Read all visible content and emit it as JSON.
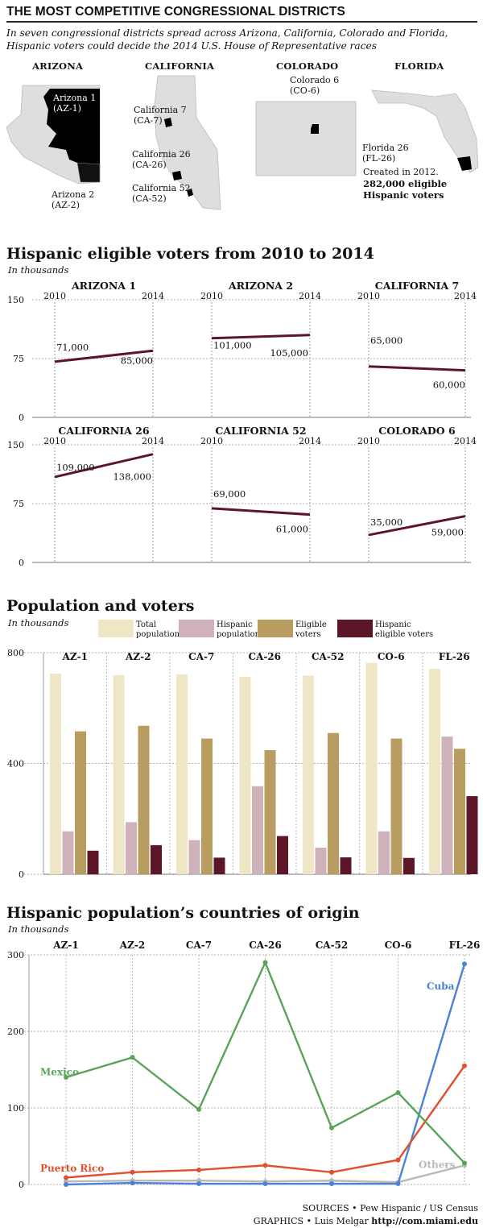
{
  "header": {
    "title": "THE MOST COMPETITIVE CONGRESSIONAL DISTRICTS",
    "subtitle": "In seven congressional districts spread across Arizona, California, Colorado and Florida, Hispanic voters could decide the 2014 U.S. House of Representative races"
  },
  "maps": {
    "arizona": {
      "name": "ARIZONA",
      "d1_line1": "Arizona 1",
      "d1_line2": "(AZ-1)",
      "d2_line1": "Arizona 2",
      "d2_line2": "(AZ-2)"
    },
    "california": {
      "name": "CALIFORNIA",
      "d1_line1": "California 7",
      "d1_line2": "(CA-7)",
      "d2_line1": "California 26",
      "d2_line2": "(CA-26)",
      "d3_line1": "California 52",
      "d3_line2": "(CA-52)"
    },
    "colorado": {
      "name": "COLORADO",
      "d1_line1": "Colorado 6",
      "d1_line2": "(CO-6)"
    },
    "florida": {
      "name": "FLORIDA",
      "d1_line1": "Florida 26",
      "d1_line2": "(FL-26)",
      "note1": "Created in 2012.",
      "note2": "282,000 eligible",
      "note3": "Hispanic voters"
    }
  },
  "colors": {
    "maroon": "#5c1628",
    "total_population": "#efe6c6",
    "hispanic_population": "#cfb1b9",
    "eligible_voters": "#b99c5f",
    "hispanic_eligible": "#5c1628",
    "mexico": "#5aa35a",
    "puerto_rico": "#e0502d",
    "cuba": "#4a82d8",
    "others": "#b8b8b8",
    "map_fill": "#dedede",
    "map_district": "#000000"
  },
  "section_eligible": {
    "title": "Hispanic eligible voters from 2010 to 2014",
    "unit": "In thousands"
  },
  "section_population": {
    "title": "Population and voters",
    "unit": "In thousands",
    "legend": [
      {
        "key": "total_population",
        "line1": "Total",
        "line2": "population"
      },
      {
        "key": "hispanic_population",
        "line1": "Hispanic",
        "line2": "population"
      },
      {
        "key": "eligible_voters",
        "line1": "Eligible",
        "line2": "voters"
      },
      {
        "key": "hispanic_eligible",
        "line1": "Hispanic",
        "line2": "eligible voters"
      }
    ]
  },
  "section_origin": {
    "title": "Hispanic population’s countries of origin",
    "unit": "In thousands"
  },
  "sources": {
    "line1": "SOURCES • Pew Hispanic / US Census",
    "line2_prefix": "GRAPHICS • Luis Melgar ",
    "line2_url": "http://com.miami.edu"
  },
  "chart_data": [
    {
      "type": "line",
      "title": "ARIZONA 1",
      "x": [
        "2010",
        "2014"
      ],
      "ylim": [
        0,
        150
      ],
      "yticks": [
        "0",
        "75",
        "150"
      ],
      "series": [
        {
          "values": [
            71,
            85
          ]
        }
      ],
      "data_labels": [
        "71,000",
        "85,000"
      ]
    },
    {
      "type": "line",
      "title": "ARIZONA 2",
      "x": [
        "2010",
        "2014"
      ],
      "ylim": [
        0,
        150
      ],
      "series": [
        {
          "values": [
            101,
            105
          ]
        }
      ],
      "data_labels": [
        "101,000",
        "105,000"
      ]
    },
    {
      "type": "line",
      "title": "CALIFORNIA 7",
      "x": [
        "2010",
        "2014"
      ],
      "ylim": [
        0,
        150
      ],
      "series": [
        {
          "values": [
            65,
            60
          ]
        }
      ],
      "data_labels": [
        "65,000",
        "60,000"
      ]
    },
    {
      "type": "line",
      "title": "CALIFORNIA 26",
      "x": [
        "2010",
        "2014"
      ],
      "ylim": [
        0,
        150
      ],
      "yticks": [
        "0",
        "75",
        "150"
      ],
      "series": [
        {
          "values": [
            109,
            138
          ]
        }
      ],
      "data_labels": [
        "109,000",
        "138,000"
      ]
    },
    {
      "type": "line",
      "title": "CALIFORNIA 52",
      "x": [
        "2010",
        "2014"
      ],
      "ylim": [
        0,
        150
      ],
      "series": [
        {
          "values": [
            69,
            61
          ]
        }
      ],
      "data_labels": [
        "69,000",
        "61,000"
      ]
    },
    {
      "type": "line",
      "title": "COLORADO 6",
      "x": [
        "2010",
        "2014"
      ],
      "ylim": [
        0,
        150
      ],
      "series": [
        {
          "values": [
            35,
            59
          ]
        }
      ],
      "data_labels": [
        "35,000",
        "59,000"
      ]
    },
    {
      "type": "bar",
      "categories": [
        "AZ-1",
        "AZ-2",
        "CA-7",
        "CA-26",
        "CA-52",
        "CO-6",
        "FL-26"
      ],
      "ylim": [
        0,
        800
      ],
      "yticks": [
        "0",
        "400",
        "800"
      ],
      "series": [
        {
          "name": "Total population",
          "values": [
            724,
            719,
            722,
            713,
            717,
            763,
            742
          ]
        },
        {
          "name": "Hispanic population",
          "values": [
            155,
            188,
            123,
            318,
            96,
            155,
            497
          ]
        },
        {
          "name": "Eligible voters",
          "values": [
            516,
            536,
            490,
            448,
            510,
            490,
            453
          ]
        },
        {
          "name": "Hispanic eligible voters",
          "values": [
            85,
            105,
            60,
            138,
            61,
            59,
            282
          ]
        }
      ]
    },
    {
      "type": "line",
      "categories": [
        "AZ-1",
        "AZ-2",
        "CA-7",
        "CA-26",
        "CA-52",
        "CO-6",
        "FL-26"
      ],
      "ylim": [
        0,
        300
      ],
      "yticks": [
        "0",
        "100",
        "200",
        "300"
      ],
      "series": [
        {
          "name": "Mexico",
          "values": [
            140,
            166,
            98,
            290,
            74,
            120,
            28
          ]
        },
        {
          "name": "Puerto Rico",
          "values": [
            9,
            16,
            19,
            25,
            16,
            32,
            155
          ]
        },
        {
          "name": "Cuba",
          "values": [
            0,
            2,
            1,
            1,
            1,
            1,
            288
          ]
        },
        {
          "name": "Others",
          "values": [
            4,
            5,
            5,
            4,
            5,
            3,
            25
          ]
        }
      ]
    }
  ]
}
